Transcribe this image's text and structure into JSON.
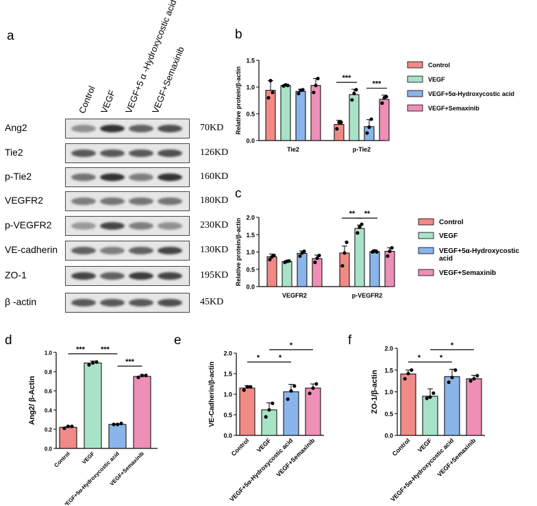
{
  "panels": {
    "a": "a",
    "b": "b",
    "c": "c",
    "d": "d",
    "e": "e",
    "f": "f"
  },
  "blot": {
    "lanes": [
      "Control",
      "VEGF",
      "VEGF+5 α -Hydroxycostic acid",
      "VEGF+Semaxinib"
    ],
    "rows": [
      {
        "protein": "Ang2",
        "kd": "70KD",
        "intensity": [
          0.45,
          0.95,
          0.7,
          0.8
        ]
      },
      {
        "protein": "Tie2",
        "kd": "126KD",
        "intensity": [
          0.75,
          0.75,
          0.75,
          0.8
        ]
      },
      {
        "protein": "p-Tie2",
        "kd": "160KD",
        "intensity": [
          0.6,
          0.95,
          0.55,
          0.95
        ]
      },
      {
        "protein": "VEGFR2",
        "kd": "180KD",
        "intensity": [
          0.55,
          0.6,
          0.6,
          0.6
        ]
      },
      {
        "protein": "p-VEGFR2",
        "kd": "230KD",
        "intensity": [
          0.4,
          0.85,
          0.55,
          0.45
        ]
      },
      {
        "protein": "VE-cadherin",
        "kd": "130KD",
        "intensity": [
          0.7,
          0.55,
          0.7,
          0.85
        ]
      },
      {
        "protein": "ZO-1",
        "kd": "195KD",
        "intensity": [
          0.85,
          0.7,
          0.9,
          0.85
        ]
      },
      {
        "protein": "β -actin",
        "kd": "45KD",
        "intensity": [
          0.75,
          0.75,
          0.75,
          0.8
        ]
      }
    ]
  },
  "colors": {
    "Control": "#f08a86",
    "VEGF": "#a9e3c7",
    "VEGF+5α-Hydroxycostic acid": "#8ab5ea",
    "VEGF+Semaxinib": "#ee8fb8"
  },
  "chart_data": [
    {
      "id": "b",
      "type": "bar",
      "ylabel": "Relative protein/β-actin",
      "ylim": [
        0,
        1.5
      ],
      "yticks": [
        "0.0",
        "0.5",
        "1.0",
        "1.5"
      ],
      "groups": [
        "Tie2",
        "p-Tie2"
      ],
      "legend": [
        "Control",
        "VEGF",
        "VEGF+5α-Hydroxycostic acid",
        "VEGF+Semaxinib"
      ],
      "series": [
        {
          "name": "Control",
          "values": [
            0.94,
            0.3
          ],
          "err": [
            0.18,
            0.08
          ],
          "points": [
            [
              0.8,
              1.12,
              0.9
            ],
            [
              0.22,
              0.34,
              0.34
            ]
          ]
        },
        {
          "name": "VEGF",
          "values": [
            1.03,
            0.86
          ],
          "err": [
            0.02,
            0.1
          ],
          "points": [
            [
              1.02,
              1.04,
              1.03
            ],
            [
              0.76,
              0.88,
              0.95
            ]
          ]
        },
        {
          "name": "VEGF+5α-Hydroxycostic acid",
          "values": [
            0.92,
            0.26
          ],
          "err": [
            0.04,
            0.13
          ],
          "points": [
            [
              0.88,
              0.94,
              0.95
            ],
            [
              0.14,
              0.25,
              0.4
            ]
          ]
        },
        {
          "name": "VEGF+Semaxinib",
          "values": [
            1.03,
            0.77
          ],
          "err": [
            0.13,
            0.08
          ],
          "points": [
            [
              0.9,
              1.03,
              1.16
            ],
            [
              0.7,
              0.8,
              0.82
            ]
          ]
        }
      ],
      "significance": [
        {
          "group": 1,
          "from": 0,
          "to": 1,
          "label": "***"
        },
        {
          "group": 1,
          "from": 2,
          "to": 3,
          "label": "***"
        }
      ]
    },
    {
      "id": "c",
      "type": "bar",
      "ylabel": "Relative protein/β-actin",
      "ylim": [
        0,
        2.0
      ],
      "yticks": [
        "0.0",
        "0.5",
        "1.0",
        "1.5",
        "2.0"
      ],
      "groups": [
        "VEGFR2",
        "p-VEGFR2"
      ],
      "legend": [
        "Control",
        "VEGF",
        "VEGF+5α-Hydroxycostic acid",
        "VEGF+Semaxinib"
      ],
      "series": [
        {
          "name": "Control",
          "values": [
            0.86,
            0.97
          ],
          "err": [
            0.08,
            0.2
          ],
          "points": [
            [
              0.78,
              0.86,
              0.9
            ],
            [
              0.6,
              0.97,
              1.28
            ]
          ]
        },
        {
          "name": "VEGF",
          "values": [
            0.72,
            1.68
          ],
          "err": [
            0.03,
            0.1
          ],
          "points": [
            [
              0.7,
              0.73,
              0.74
            ],
            [
              1.55,
              1.72,
              1.8
            ]
          ]
        },
        {
          "name": "VEGF+5α-Hydroxycostic acid",
          "values": [
            0.96,
            1.01
          ],
          "err": [
            0.07,
            0.05
          ],
          "points": [
            [
              0.88,
              0.97,
              1.02
            ],
            [
              1.0,
              1.03,
              1.0
            ]
          ]
        },
        {
          "name": "VEGF+Semaxinib",
          "values": [
            0.81,
            1.02
          ],
          "err": [
            0.1,
            0.1
          ],
          "points": [
            [
              0.7,
              0.82,
              0.9
            ],
            [
              0.88,
              1.02,
              1.12
            ]
          ]
        }
      ],
      "significance": [
        {
          "group": 1,
          "from": 0,
          "to": 1,
          "label": "**"
        },
        {
          "group": 1,
          "from": 1,
          "to": 2,
          "label": "**"
        }
      ]
    },
    {
      "id": "d",
      "type": "bar",
      "ylabel": "Ang2/ β-Actin",
      "ylim": [
        0,
        1.0
      ],
      "yticks": [
        "0.0",
        "0.2",
        "0.4",
        "0.6",
        "0.8",
        "1.0"
      ],
      "categories": [
        "Control",
        "VEGF",
        "VEGF+5α-Hydroxycostic acid",
        "VEGF+Semaxinib"
      ],
      "values": [
        0.22,
        0.89,
        0.25,
        0.75
      ],
      "err": [
        0.01,
        0.02,
        0.005,
        0.015
      ],
      "points": [
        [
          0.21,
          0.23,
          0.23
        ],
        [
          0.87,
          0.89,
          0.9
        ],
        [
          0.25,
          0.25,
          0.26
        ],
        [
          0.74,
          0.76,
          0.76
        ]
      ],
      "significance": [
        {
          "from": 0,
          "to": 1,
          "label": "***"
        },
        {
          "from": 1,
          "to": 2,
          "label": "***"
        },
        {
          "from": 2,
          "to": 3,
          "label": "***"
        }
      ]
    },
    {
      "id": "e",
      "type": "bar",
      "ylabel": "VE-Cadherin/β-actin",
      "ylim": [
        0,
        2.0
      ],
      "yticks": [
        "0.0",
        "0.5",
        "1.0",
        "1.5",
        "2.0"
      ],
      "categories": [
        "Control",
        "VEGF",
        "VEGF+5α-Hydroxycostic acid",
        "VEGF+Semaxinib"
      ],
      "values": [
        1.15,
        0.62,
        1.06,
        1.15
      ],
      "err": [
        0.06,
        0.17,
        0.18,
        0.1
      ],
      "points": [
        [
          1.1,
          1.18,
          1.18
        ],
        [
          0.45,
          0.62,
          0.78
        ],
        [
          0.88,
          1.08,
          1.2
        ],
        [
          1.02,
          1.15,
          1.25
        ]
      ],
      "significance": [
        {
          "from": 0,
          "to": 1,
          "label": "*"
        },
        {
          "from": 1,
          "to": 2,
          "label": "*"
        },
        {
          "from": 1,
          "to": 3,
          "label": "*"
        }
      ]
    },
    {
      "id": "f",
      "type": "bar",
      "ylabel": "ZO-1/β-actin",
      "ylim": [
        0,
        2.0
      ],
      "yticks": [
        "0.0",
        "0.5",
        "1.0",
        "1.5",
        "2.0"
      ],
      "categories": [
        "Control",
        "VEGF",
        "VEGF+5α-Hydroxycostic acid",
        "VEGF+Semaxinib"
      ],
      "values": [
        1.41,
        0.9,
        1.35,
        1.3
      ],
      "err": [
        0.09,
        0.17,
        0.17,
        0.08
      ],
      "points": [
        [
          1.3,
          1.42,
          1.5
        ],
        [
          0.85,
          0.88,
          0.97
        ],
        [
          1.22,
          1.33,
          1.5
        ],
        [
          1.25,
          1.3,
          1.37
        ]
      ],
      "significance": [
        {
          "from": 0,
          "to": 1,
          "label": "*"
        },
        {
          "from": 1,
          "to": 2,
          "label": "*"
        },
        {
          "from": 1,
          "to": 3,
          "label": "*"
        }
      ]
    }
  ]
}
